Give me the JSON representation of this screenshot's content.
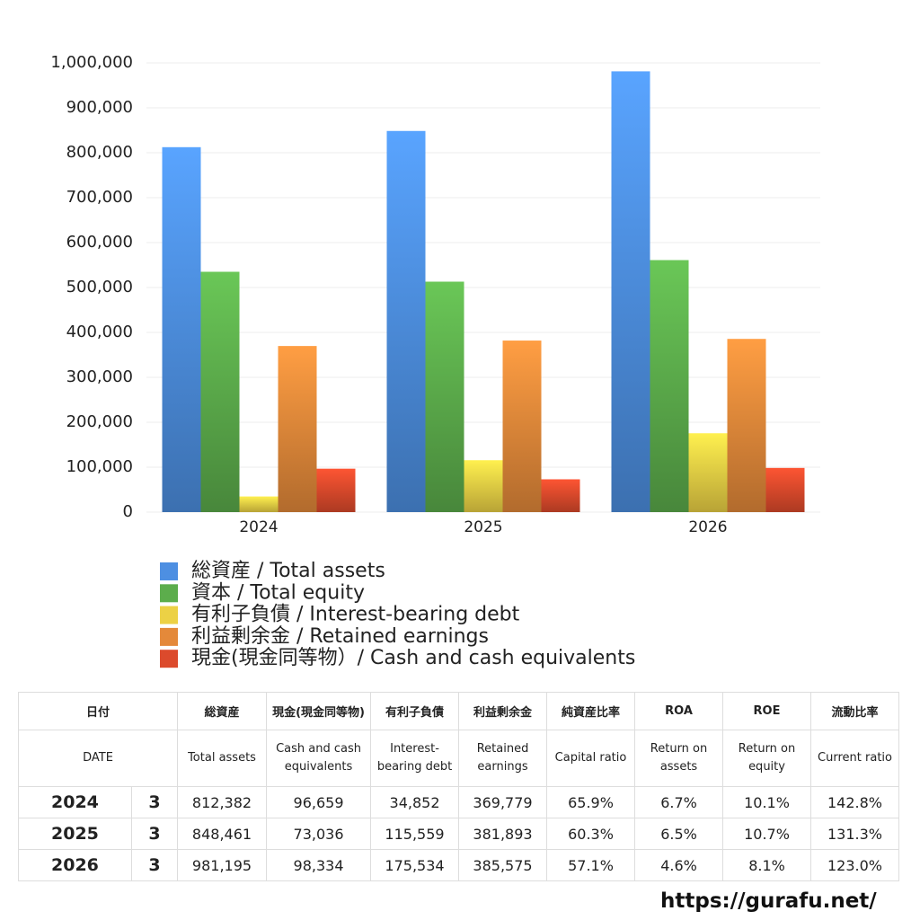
{
  "chart_data": {
    "type": "bar",
    "categories": [
      "2024",
      "2025",
      "2026"
    ],
    "series": [
      {
        "name": "総資産 / Total assets",
        "color": "#4d8fe2",
        "values": [
          812382,
          848461,
          981195
        ]
      },
      {
        "name": "資本 / Total equity",
        "color": "#5cad4c",
        "values": [
          535000,
          513000,
          561000
        ]
      },
      {
        "name": "有利子負債 / Interest-bearing debt",
        "color": "#ecd145",
        "values": [
          34852,
          115559,
          175534
        ]
      },
      {
        "name": "利益剰余金 / Retained earnings",
        "color": "#e4893a",
        "values": [
          369779,
          381893,
          385575
        ]
      },
      {
        "name": "現金(現金同等物）/  Cash and cash equivalents",
        "color": "#dc4a2c",
        "values": [
          96659,
          73036,
          98334
        ]
      }
    ],
    "ylim": [
      0,
      1000000
    ],
    "yticks": [
      0,
      {
        "value": 100000,
        "label": "100,000"
      },
      {
        "value": 200000,
        "label": "200,000"
      },
      {
        "value": 300000,
        "label": "300,000"
      },
      {
        "value": 400000,
        "label": "400,000"
      },
      {
        "value": 500000,
        "label": "500,000"
      },
      {
        "value": 600000,
        "label": "600,000"
      },
      {
        "value": 700000,
        "label": "700,000"
      },
      {
        "value": 800000,
        "label": "800,000"
      },
      {
        "value": 900000,
        "label": "900,000"
      },
      {
        "value": 1000000,
        "label": "1,000,000"
      }
    ],
    "grid": true
  },
  "table": {
    "header": [
      [
        "日付",
        "総資産",
        "現金(現金同等物)",
        "有利子負債",
        "利益剰余金",
        "純資産比率",
        "ROA",
        "ROE",
        "流動比率"
      ],
      [
        "DATE",
        "Total assets",
        "Cash and cash equivalents",
        "Interest-bearing debt",
        "Retained earnings",
        "Capital ratio",
        "Return on assets",
        "Return on equity",
        "Current ratio"
      ]
    ],
    "rows": [
      [
        "2024",
        "3",
        "812,382",
        "96,659",
        "34,852",
        "369,779",
        "65.9%",
        "6.7%",
        "10.1%",
        "142.8%"
      ],
      [
        "2025",
        "3",
        "848,461",
        "73,036",
        "115,559",
        "381,893",
        "60.3%",
        "6.5%",
        "10.7%",
        "131.3%"
      ],
      [
        "2026",
        "3",
        "981,195",
        "98,334",
        "175,534",
        "385,575",
        "57.1%",
        "4.6%",
        "8.1%",
        "123.0%"
      ]
    ]
  },
  "footer": {
    "url": "https://gurafu.net/"
  }
}
